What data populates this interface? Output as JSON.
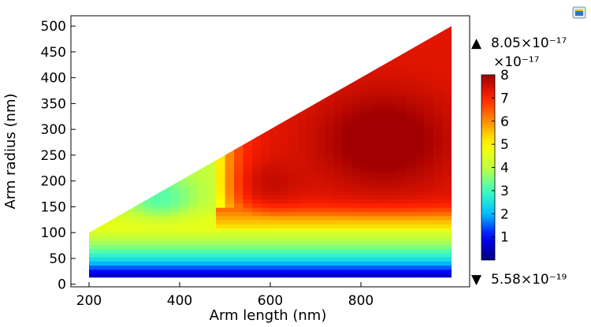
{
  "chart_data": {
    "type": "heatmap",
    "title": "",
    "xlabel": "Arm length (nm)",
    "ylabel": "Arm radius (nm)",
    "xlim": [
      160,
      1040
    ],
    "ylim": [
      -5,
      520
    ],
    "x_ticks": [
      "200",
      "400",
      "600",
      "800"
    ],
    "x_tick_values": [
      200,
      400,
      600,
      800
    ],
    "y_ticks": [
      "0",
      "50",
      "100",
      "150",
      "200",
      "250",
      "300",
      "350",
      "400",
      "450",
      "500"
    ],
    "y_tick_values": [
      0,
      50,
      100,
      150,
      200,
      250,
      300,
      350,
      400,
      450,
      500
    ],
    "domain_polygon": [
      [
        200,
        13
      ],
      [
        1000,
        13
      ],
      [
        1000,
        500
      ],
      [
        200,
        100
      ]
    ],
    "colorbar": {
      "colormap": "rainbow",
      "multiplier": "×10⁻¹⁷",
      "min": 0,
      "max": 8,
      "ticks": [
        "1",
        "2",
        "3",
        "4",
        "5",
        "6",
        "7",
        "8"
      ],
      "tick_values": [
        1,
        2,
        3,
        4,
        5,
        6,
        7,
        8
      ]
    },
    "max_label": "8.05×10⁻¹⁷",
    "min_label": "5.58×10⁻¹⁹",
    "grid": false,
    "colormap_stops": [
      "#00007f",
      "#0000ff",
      "#00bfff",
      "#3fffbf",
      "#bfff3f",
      "#ffff00",
      "#ff8c00",
      "#ff2000",
      "#a00000"
    ]
  },
  "toolbar": {
    "corner_icon": "window-icon"
  }
}
